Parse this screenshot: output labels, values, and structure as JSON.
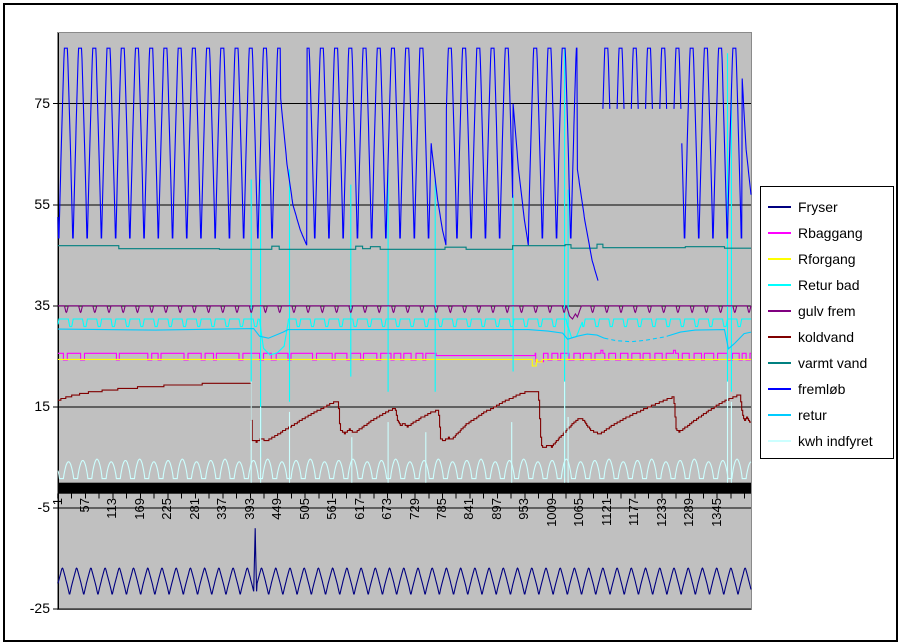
{
  "chart_data": {
    "type": "line",
    "title": "",
    "x_range": [
      1,
      1414
    ],
    "x_tick_labels": [
      1,
      57,
      113,
      169,
      225,
      281,
      337,
      393,
      449,
      505,
      561,
      617,
      673,
      729,
      785,
      841,
      897,
      953,
      1009,
      1065,
      1121,
      1177,
      1233,
      1289,
      1345
    ],
    "x_tick_interval": 56,
    "y_ticks": [
      75,
      55,
      35,
      15,
      -5,
      -25
    ],
    "y_range": [
      -25,
      89
    ],
    "category_axis_value": 0,
    "plot_bg": "#c0c0c0",
    "gridline_color": "#000000",
    "axis_color": "#000000",
    "legend_position": "right",
    "series": [
      {
        "name": "Fryser",
        "color": "#000080",
        "spec": {
          "gen": "osc",
          "trough": -22.3,
          "peak": -16.9,
          "period": 29,
          "peak_at": 10,
          "sharp": 1.05,
          "overrides": [
            {
              "pts": [
                [
                  400,
                  -21.5
                ],
                [
                  403,
                  -9
                ],
                [
                  406,
                  -21.5
                ]
              ]
            }
          ]
        }
      },
      {
        "name": "Rbaggang",
        "color": "#ff00ff",
        "spec": {
          "gen": "pulses",
          "base": 25.6,
          "dip": 24.3,
          "events": [
            [
              12,
              8
            ],
            [
              47,
              8
            ],
            [
              120,
              6
            ],
            [
              184,
              8
            ],
            [
              205,
              6
            ],
            [
              258,
              8
            ],
            [
              293,
              8
            ],
            [
              318,
              6
            ],
            [
              370,
              8
            ],
            [
              412,
              8
            ],
            [
              436,
              10
            ],
            [
              470,
              6
            ],
            [
              520,
              8
            ],
            [
              560,
              6
            ],
            [
              590,
              8
            ],
            [
              618,
              6
            ],
            [
              651,
              8
            ],
            [
              680,
              6
            ],
            [
              700,
              6
            ],
            [
              721,
              10
            ],
            [
              745,
              6
            ],
            [
              772,
              202,
              25.15
            ],
            [
              975,
              16,
              23.95
            ],
            [
              1000,
              8
            ],
            [
              1020,
              6
            ],
            [
              1043,
              10
            ],
            [
              1066,
              6
            ],
            [
              1088,
              8
            ],
            [
              1108,
              4,
              26.2
            ],
            [
              1116,
              8
            ],
            [
              1138,
              10
            ],
            [
              1163,
              8
            ],
            [
              1188,
              6
            ],
            [
              1208,
              10
            ],
            [
              1233,
              8
            ],
            [
              1256,
              4,
              26.2
            ],
            [
              1266,
              8
            ],
            [
              1288,
              10
            ],
            [
              1313,
              6
            ],
            [
              1338,
              8
            ],
            [
              1366,
              10
            ],
            [
              1390,
              6
            ],
            [
              1404,
              8
            ]
          ]
        }
      },
      {
        "name": "Rforgang",
        "color": "#ffff00",
        "spec": {
          "gen": "pulses",
          "base": 24.4,
          "dip": 23.4,
          "events": [
            [
              968,
              8,
              23.1
            ],
            [
              978,
              10,
              23.9
            ]
          ]
        }
      },
      {
        "name": "Retur bad",
        "color": "#00ffff",
        "spec": {
          "gen": "vdips",
          "base": 32.4,
          "depth": 1.5,
          "period": 29,
          "width": 10,
          "phase": 22,
          "dip_sharp": 1.8,
          "overrides": [
            {
              "pts": [
                [
                  412,
                  32.2
                ],
                [
                  420,
                  26.6
                ],
                [
                  433,
                  25.3
                ],
                [
                  448,
                  25.7
                ],
                [
                  462,
                  27.0
                ],
                [
                  470,
                  31.6
                ]
              ]
            },
            {
              "pts": [
                [
                  1041,
                  31.0
                ],
                [
                  1048,
                  28.7
                ],
                [
                  1058,
                  28.9
                ],
                [
                  1070,
                  31.8
                ]
              ]
            }
          ],
          "spikes": [
            [
              395,
              60,
              20
            ],
            [
              414,
              60,
              5
            ],
            [
              473,
              62,
              16
            ],
            [
              598,
              59,
              21
            ],
            [
              674,
              62,
              18
            ],
            [
              770,
              60,
              18
            ],
            [
              929,
              57,
              22
            ],
            [
              1034,
              86,
              1
            ],
            [
              1041,
              58,
              25
            ],
            [
              1366,
              85,
              14
            ],
            [
              1374,
              79,
              18
            ]
          ]
        }
      },
      {
        "name": "gulv frem",
        "color": "#800080",
        "spec": {
          "gen": "vdips",
          "base": 35.0,
          "depth": 1.3,
          "period": 29,
          "width": 8,
          "phase": 14,
          "dip_sharp": 1.2,
          "overrides": [
            {
              "pts": [
                [
                  1038,
                  34.9
                ],
                [
                  1044,
                  33.0
                ],
                [
                  1050,
                  32.4
                ],
                [
                  1056,
                  33.4
                ],
                [
                  1060,
                  32.8
                ],
                [
                  1068,
                  34.9
                ]
              ]
            }
          ]
        }
      },
      {
        "name": "koldvand",
        "color": "#800000",
        "spec": {
          "gen": "path",
          "stepify": true,
          "points": [
            [
              1,
              16.3
            ],
            [
              25,
              17.1
            ],
            [
              60,
              17.8
            ],
            [
              110,
              18.4
            ],
            [
              170,
              18.9
            ],
            [
              240,
              19.3
            ],
            [
              320,
              19.6
            ],
            [
              393,
              19.8
            ],
            [
              396,
              8.4
            ],
            [
              405,
              8.1
            ],
            [
              415,
              8.7
            ],
            [
              425,
              8.2
            ],
            [
              435,
              8.8
            ],
            [
              470,
              10.8
            ],
            [
              510,
              13.2
            ],
            [
              545,
              15.0
            ],
            [
              565,
              16.0
            ],
            [
              572,
              16.1
            ],
            [
              576,
              10.4
            ],
            [
              585,
              9.7
            ],
            [
              595,
              10.5
            ],
            [
              605,
              9.9
            ],
            [
              612,
              10.3
            ],
            [
              645,
              12.6
            ],
            [
              672,
              14.1
            ],
            [
              688,
              14.7
            ],
            [
              693,
              12.3
            ],
            [
              699,
              11.3
            ],
            [
              706,
              11.7
            ],
            [
              713,
              11.1
            ],
            [
              718,
              11.4
            ],
            [
              742,
              12.9
            ],
            [
              762,
              13.9
            ],
            [
              776,
              14.4
            ],
            [
              781,
              8.7
            ],
            [
              788,
              8.3
            ],
            [
              796,
              8.9
            ],
            [
              803,
              8.5
            ],
            [
              835,
              11.7
            ],
            [
              870,
              13.9
            ],
            [
              905,
              15.8
            ],
            [
              935,
              17.2
            ],
            [
              958,
              18.1
            ],
            [
              974,
              17.9
            ],
            [
              980,
              18.0
            ],
            [
              986,
              7.3
            ],
            [
              993,
              6.9
            ],
            [
              1000,
              7.5
            ],
            [
              1007,
              7.1
            ],
            [
              1030,
              9.6
            ],
            [
              1052,
              11.8
            ],
            [
              1066,
              12.9
            ],
            [
              1075,
              12.0
            ],
            [
              1085,
              10.6
            ],
            [
              1096,
              9.9
            ],
            [
              1106,
              9.7
            ],
            [
              1135,
              11.6
            ],
            [
              1170,
              13.4
            ],
            [
              1210,
              15.2
            ],
            [
              1245,
              16.6
            ],
            [
              1256,
              17.0
            ],
            [
              1261,
              10.5
            ],
            [
              1267,
              10.1
            ],
            [
              1273,
              10.4
            ],
            [
              1300,
              12.4
            ],
            [
              1330,
              14.4
            ],
            [
              1360,
              16.2
            ],
            [
              1385,
              17.2
            ],
            [
              1391,
              17.4
            ],
            [
              1396,
              13.5
            ],
            [
              1400,
              12.3
            ],
            [
              1405,
              12.9
            ],
            [
              1410,
              12.0
            ],
            [
              1414,
              12.2
            ]
          ]
        }
      },
      {
        "name": "varmt vand",
        "color": "#008080",
        "spec": {
          "gen": "steps",
          "points": [
            [
              1,
              46.9
            ],
            [
              125,
              46.3
            ],
            [
              330,
              46.2
            ],
            [
              437,
              46.8
            ],
            [
              452,
              46.2
            ],
            [
              608,
              46.8
            ],
            [
              622,
              46.3
            ],
            [
              638,
              46.7
            ],
            [
              658,
              46.2
            ],
            [
              790,
              46.6
            ],
            [
              833,
              46.2
            ],
            [
              928,
              46.9
            ],
            [
              1035,
              47.1
            ],
            [
              1047,
              46.4
            ],
            [
              1100,
              47.2
            ],
            [
              1112,
              46.5
            ],
            [
              1280,
              46.7
            ],
            [
              1360,
              46.4
            ]
          ]
        }
      },
      {
        "name": "fremløb",
        "color": "#0000ff",
        "spec": {
          "gen": "osc",
          "trough": 46,
          "peak": 86,
          "period": 29,
          "peak_at": 17,
          "sharp": 1.3,
          "sparse": [
            1103,
            1272,
            73
          ],
          "overrides": [
            {
              "pts": [
                [
                  455,
                  76
                ],
                [
                  468,
                  63
                ],
                [
                  480,
                  55
                ],
                [
                  495,
                  50
                ],
                [
                  508,
                  47
                ]
              ]
            },
            {
              "pts": [
                [
                  763,
                  66
                ],
                [
                  775,
                  56
                ],
                [
                  785,
                  50
                ],
                [
                  792,
                  47
                ]
              ]
            },
            {
              "pts": [
                [
                  929,
                  75
                ],
                [
                  940,
                  62
                ],
                [
                  952,
                  52
                ],
                [
                  960,
                  47
                ]
              ]
            },
            {
              "pts": [
                [
                  1060,
                  62
                ],
                [
                  1075,
                  52
                ],
                [
                  1090,
                  44
                ],
                [
                  1102,
                  40
                ]
              ]
            },
            {
              "pts": [
                [
                  1396,
                  80
                ],
                [
                  1404,
                  66
                ],
                [
                  1414,
                  57
                ]
              ]
            }
          ]
        }
      },
      {
        "name": "retur",
        "color": "#00ccff",
        "spec": {
          "gen": "path",
          "dash": [
            1115,
            1245
          ],
          "points": [
            [
              1,
              30.4
            ],
            [
              200,
              30.2
            ],
            [
              400,
              30.5
            ],
            [
              412,
              29.0
            ],
            [
              430,
              28.6
            ],
            [
              460,
              29.8
            ],
            [
              470,
              30.3
            ],
            [
              960,
              30.3
            ],
            [
              1000,
              30.0
            ],
            [
              1030,
              29.6
            ],
            [
              1040,
              28.4
            ],
            [
              1060,
              29.0
            ],
            [
              1080,
              29.4
            ],
            [
              1100,
              29.2
            ],
            [
              1115,
              28.6
            ],
            [
              1140,
              28.1
            ],
            [
              1170,
              27.9
            ],
            [
              1200,
              28.2
            ],
            [
              1240,
              28.9
            ],
            [
              1270,
              29.8
            ],
            [
              1300,
              30.2
            ],
            [
              1360,
              30.3
            ],
            [
              1368,
              26.5
            ],
            [
              1380,
              27.5
            ],
            [
              1400,
              29.5
            ],
            [
              1414,
              29.8
            ]
          ]
        }
      },
      {
        "name": "kwh indfyret",
        "color": "#ccffff",
        "spec": {
          "gen": "humps",
          "base": 0.8,
          "peak": 4.4,
          "period": 29,
          "gap": 8,
          "phase": 4,
          "spikes": [
            [
              395,
              20,
              0
            ],
            [
              414,
              15,
              0
            ],
            [
              473,
              14,
              0
            ],
            [
              600,
              9,
              0
            ],
            [
              674,
              12,
              0
            ],
            [
              751,
              10,
              0
            ],
            [
              926,
              12,
              0
            ],
            [
              1034,
              20,
              0
            ],
            [
              1041,
              13,
              0
            ],
            [
              1366,
              20,
              0
            ],
            [
              1374,
              16,
              0
            ]
          ]
        }
      }
    ]
  }
}
